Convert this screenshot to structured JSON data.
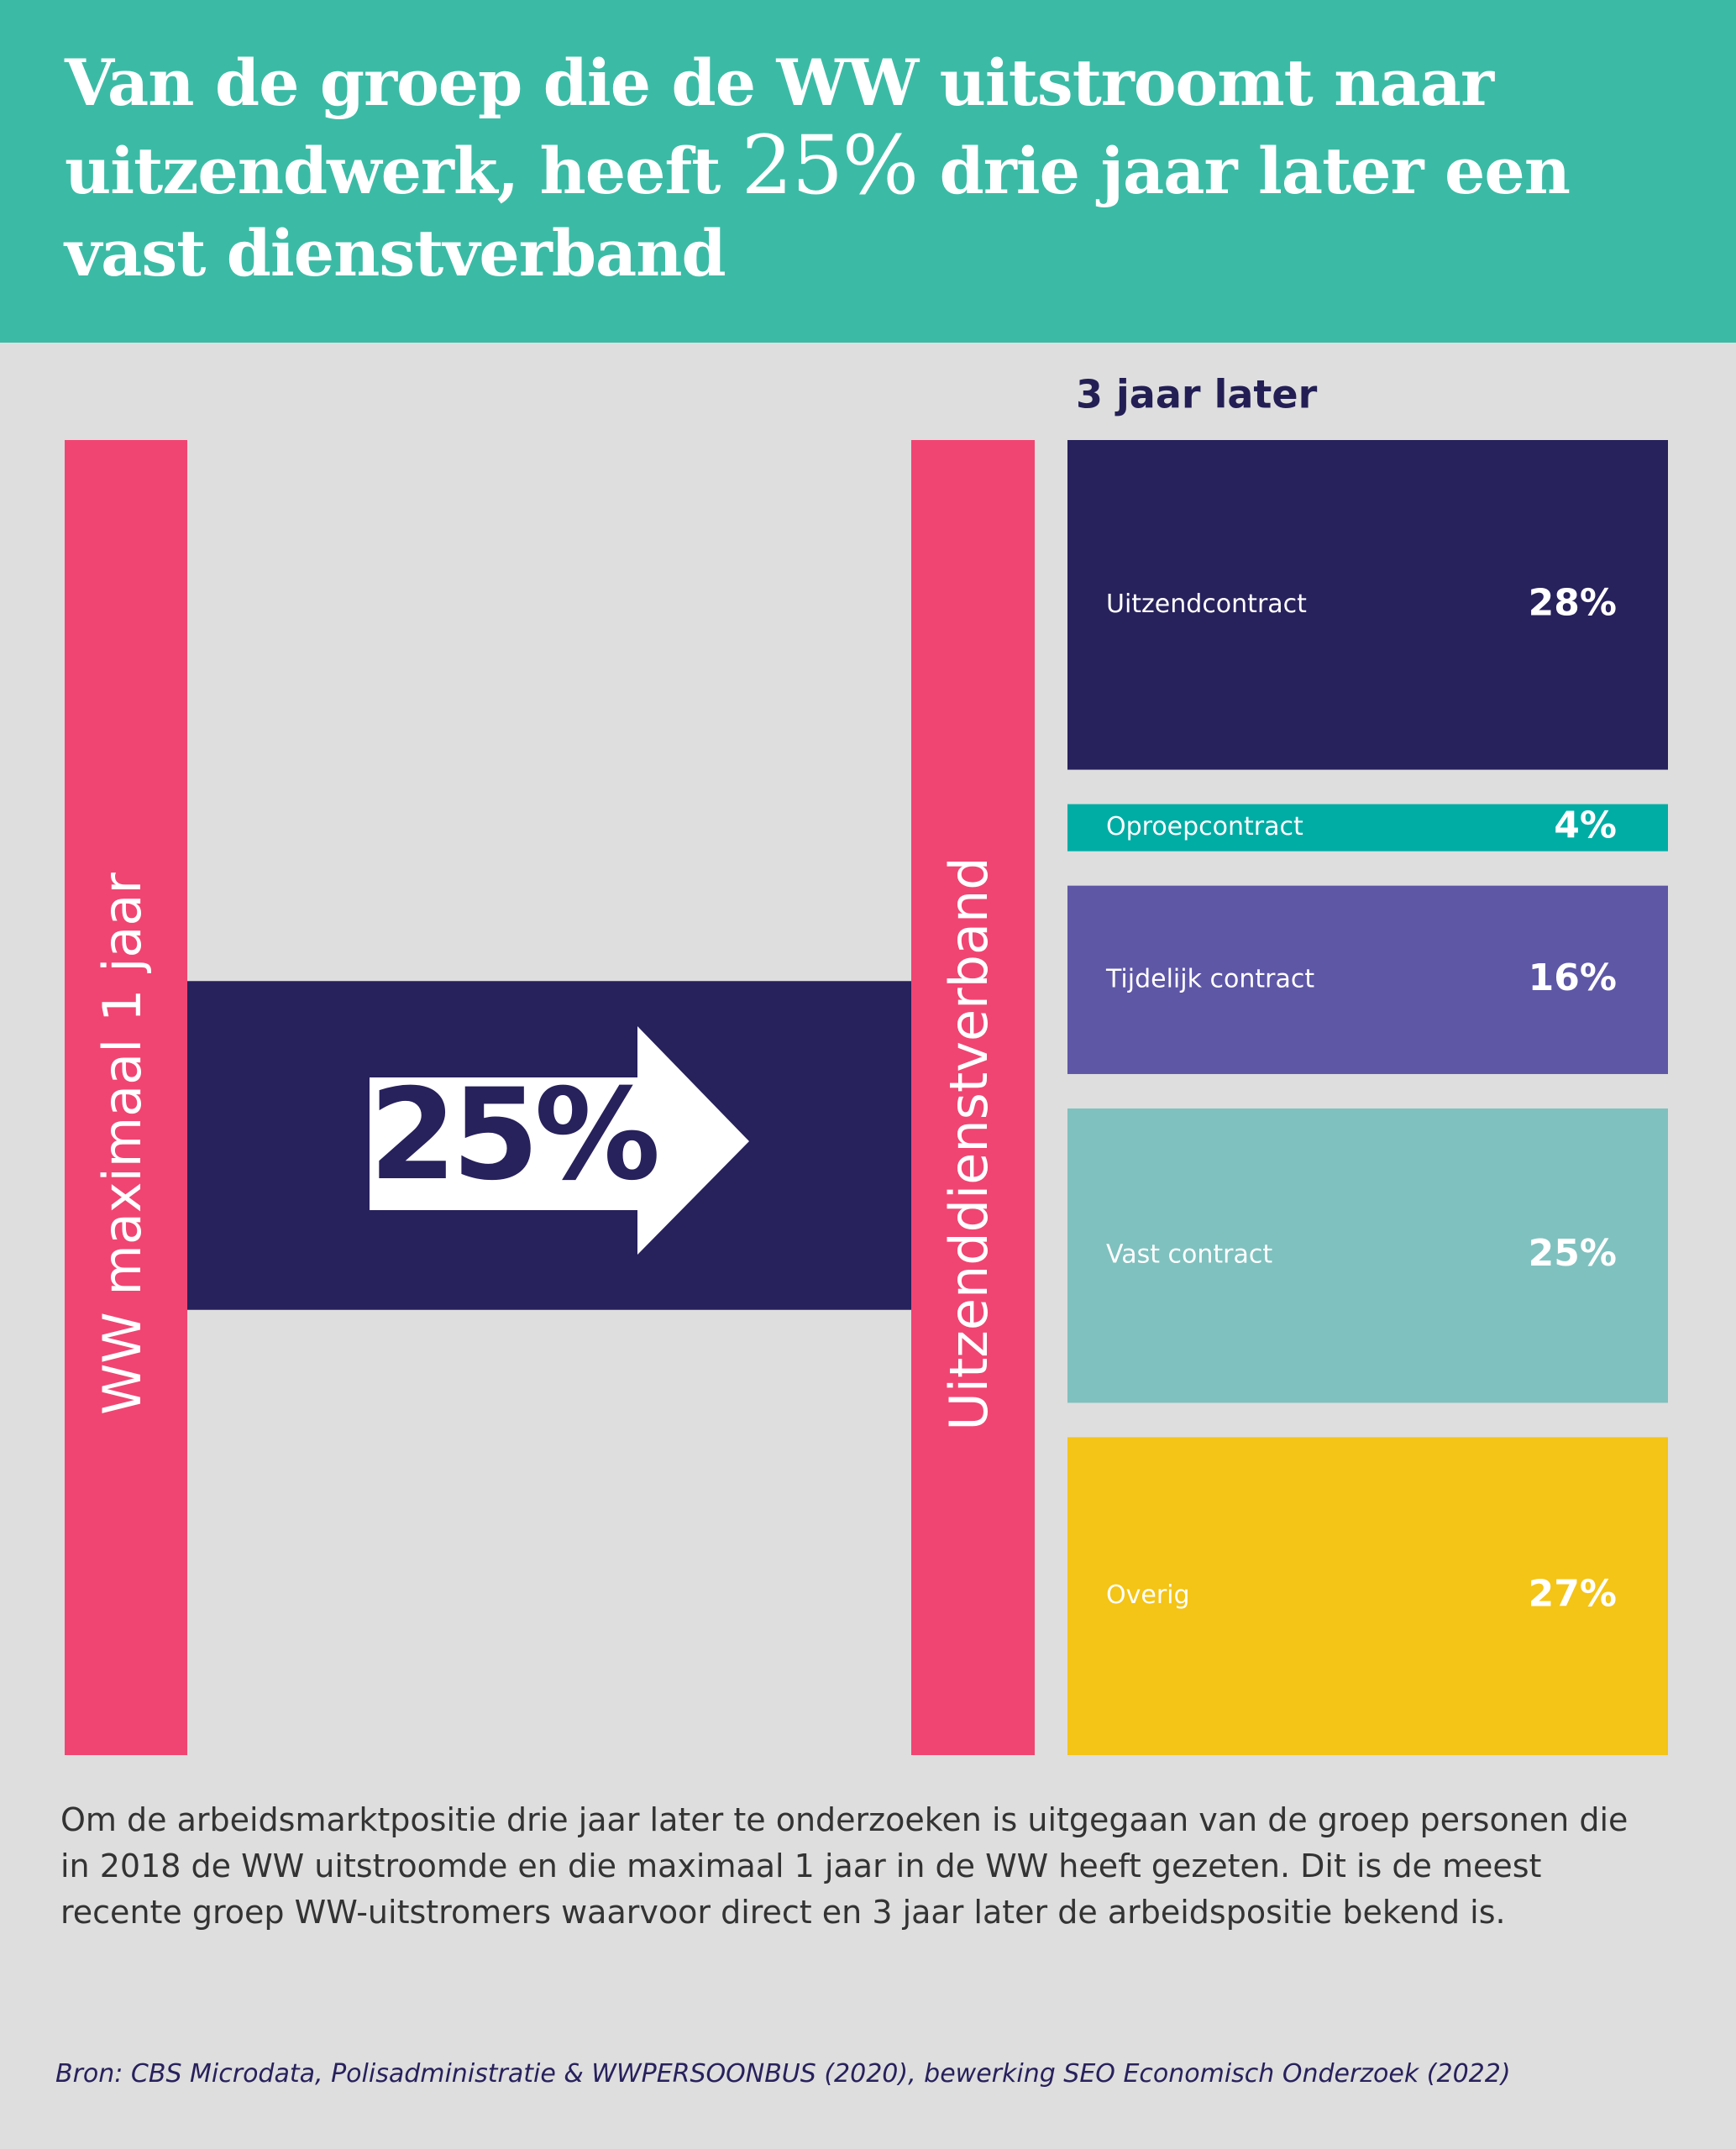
{
  "chart_data": {
    "type": "sankey",
    "title": {
      "before": "Van de groep die de WW uitstroomt naar uitzendwerk, heeft",
      "highlight": "25%",
      "after": "drie jaar later een vast dienstverband"
    },
    "source_node": "WW maximaal 1 jaar",
    "target_node": "Uitzenddienstverband",
    "flow": {
      "value": 25,
      "value_label": "25%",
      "color": "#27215c"
    },
    "node_color": "#f04572",
    "breakdown_title": "3 jaar later",
    "categories": [
      "Uitzendcontract",
      "Oproepcontract",
      "Tijdelijk contract",
      "Vast contract",
      "Overig"
    ],
    "values": [
      28,
      4,
      16,
      25,
      27
    ],
    "value_labels": [
      "28%",
      "4%",
      "16%",
      "25%",
      "27%"
    ],
    "colors": [
      "#27215c",
      "#00ada5",
      "#5e57a6",
      "#7fc1bf",
      "#f4c416"
    ],
    "note": "Om de arbeidsmarktpositie drie jaar later te onderzoeken is uitgegaan van de groep personen die in 2018 de WW uitstroomde en die maximaal 1 jaar in de WW heeft gezeten. Dit is de meest recente groep WW-uitstromers waarvoor direct en 3 jaar later de arbeidspositie bekend is.",
    "source": "Bron: CBS Microdata, Polisadministratie & WWPERSOONBUS (2020), bewerking SEO Economisch Onderzoek (2022)"
  }
}
